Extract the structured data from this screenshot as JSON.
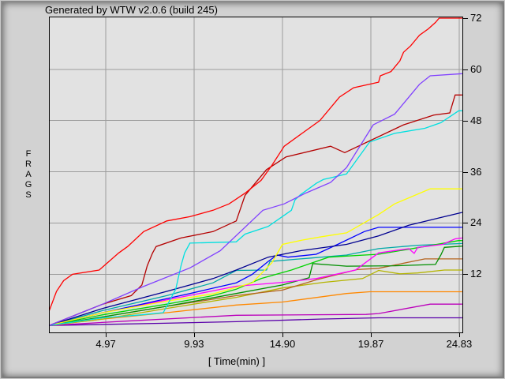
{
  "window": {
    "title": "Generated by WTW v2.0.6 (build 245)"
  },
  "chart_data": {
    "type": "line",
    "title": "",
    "xlabel": "[ Time(min) ]",
    "ylabel": "FRAGS",
    "y_axis_side": "right",
    "grid": true,
    "grid_color": "#9c9c9c",
    "plot_bg_color": "#e2e2e2",
    "x_range": [
      1.82,
      25.01
    ],
    "y_range": [
      -1.62,
      72.18
    ],
    "x_tick_values": [
      4.97,
      9.93,
      14.9,
      19.87,
      24.83
    ],
    "x_tick_labels": [
      "4.97",
      "9.93",
      "14.90",
      "19.87",
      "24.83"
    ],
    "y_tick_values": [
      72,
      60,
      48,
      36,
      24,
      12
    ],
    "y_tick_labels": [
      "72",
      "60",
      "48",
      "36",
      "24",
      "12"
    ],
    "legend": "none",
    "series": [
      {
        "name": "indigo",
        "color": "#5a00aa",
        "points": [
          [
            1.8,
            0
          ],
          [
            8.0,
            0.5
          ],
          [
            12.3,
            0.9
          ],
          [
            17.0,
            1.5
          ],
          [
            20.3,
            1.8
          ],
          [
            25.0,
            1.8
          ]
        ]
      },
      {
        "name": "dark-magenta",
        "color": "#bb00bb",
        "points": [
          [
            1.8,
            0
          ],
          [
            6.0,
            1
          ],
          [
            12.3,
            2.4
          ],
          [
            19.6,
            2.6
          ],
          [
            20.3,
            2.8
          ],
          [
            23.2,
            5
          ],
          [
            25.0,
            5
          ]
        ]
      },
      {
        "name": "orange",
        "color": "#ff8800",
        "points": [
          [
            1.8,
            0
          ],
          [
            4.8,
            1.5
          ],
          [
            8.4,
            3
          ],
          [
            12.3,
            4.8
          ],
          [
            14.9,
            5.5
          ],
          [
            18.5,
            7.5
          ],
          [
            19.8,
            7.9
          ],
          [
            25.0,
            7.9
          ]
        ]
      },
      {
        "name": "olive",
        "color": "#b4b400",
        "points": [
          [
            1.8,
            0
          ],
          [
            4.8,
            1.5
          ],
          [
            8.4,
            4
          ],
          [
            12.3,
            6.6
          ],
          [
            14.9,
            8.8
          ],
          [
            17.2,
            10.1
          ],
          [
            19.4,
            11
          ],
          [
            20.3,
            12.9
          ],
          [
            21.5,
            12.1
          ],
          [
            22.5,
            12.3
          ],
          [
            24.0,
            13
          ],
          [
            25.0,
            13
          ]
        ]
      },
      {
        "name": "brown",
        "color": "#b46420",
        "points": [
          [
            1.8,
            0
          ],
          [
            4.8,
            2
          ],
          [
            8.4,
            4.5
          ],
          [
            12.3,
            7
          ],
          [
            14.9,
            8.3
          ],
          [
            16.8,
            10.7
          ],
          [
            19.1,
            13.1
          ],
          [
            20.3,
            13.4
          ],
          [
            22.9,
            15.6
          ],
          [
            25.0,
            15.6
          ]
        ]
      },
      {
        "name": "dark-green",
        "color": "#008f00",
        "points": [
          [
            1.8,
            0
          ],
          [
            4.8,
            2
          ],
          [
            8.4,
            4.5
          ],
          [
            12.3,
            7.5
          ],
          [
            14.9,
            9.5
          ],
          [
            16.4,
            11.2
          ],
          [
            16.6,
            14.5
          ],
          [
            18.5,
            13.9
          ],
          [
            21.2,
            14
          ],
          [
            23.5,
            14.3
          ],
          [
            23.8,
            16.5
          ],
          [
            24.0,
            18.3
          ],
          [
            25.0,
            18.6
          ]
        ]
      },
      {
        "name": "teal",
        "color": "#00a8a8",
        "points": [
          [
            1.8,
            0
          ],
          [
            4.8,
            3.5
          ],
          [
            8.4,
            7
          ],
          [
            11.0,
            10
          ],
          [
            12.3,
            12.9
          ],
          [
            14.0,
            13
          ],
          [
            14.2,
            15
          ],
          [
            15.9,
            15.6
          ],
          [
            16.5,
            15.8
          ],
          [
            18.5,
            16.5
          ],
          [
            20.3,
            18
          ],
          [
            22.5,
            18.8
          ],
          [
            25.0,
            19.2
          ]
        ]
      },
      {
        "name": "green",
        "color": "#00d400",
        "points": [
          [
            1.8,
            0
          ],
          [
            4.8,
            2.5
          ],
          [
            8.4,
            5
          ],
          [
            11.0,
            7
          ],
          [
            12.3,
            8.5
          ],
          [
            13.7,
            11
          ],
          [
            15.4,
            13
          ],
          [
            17.5,
            16
          ],
          [
            18.2,
            16.2
          ],
          [
            20.3,
            16.7
          ],
          [
            22.9,
            18.5
          ],
          [
            24.8,
            19.9
          ],
          [
            25.0,
            19.9
          ]
        ]
      },
      {
        "name": "magenta",
        "color": "#ff00ff",
        "points": [
          [
            1.8,
            0
          ],
          [
            4.8,
            3
          ],
          [
            8.4,
            6
          ],
          [
            12.3,
            9.2
          ],
          [
            14.9,
            10.1
          ],
          [
            16.8,
            11
          ],
          [
            19.0,
            13
          ],
          [
            20.3,
            17
          ],
          [
            22.0,
            18
          ],
          [
            22.3,
            16.9
          ],
          [
            22.5,
            18.3
          ],
          [
            23.9,
            19
          ],
          [
            24.6,
            20.3
          ],
          [
            25.0,
            20.5
          ]
        ]
      },
      {
        "name": "blue",
        "color": "#0000ff",
        "points": [
          [
            1.8,
            0
          ],
          [
            4.8,
            3
          ],
          [
            7.0,
            5
          ],
          [
            9.7,
            7.5
          ],
          [
            12.3,
            10
          ],
          [
            13.2,
            12
          ],
          [
            14.1,
            15
          ],
          [
            14.6,
            16.5
          ],
          [
            15.2,
            16
          ],
          [
            16.8,
            16.7
          ],
          [
            18.0,
            19
          ],
          [
            19.5,
            22
          ],
          [
            20.3,
            23
          ],
          [
            25.0,
            23
          ]
        ]
      },
      {
        "name": "navy",
        "color": "#000090",
        "points": [
          [
            1.8,
            0
          ],
          [
            4.8,
            4
          ],
          [
            8.4,
            8
          ],
          [
            11.0,
            11
          ],
          [
            12.3,
            13
          ],
          [
            14.1,
            16
          ],
          [
            15.9,
            17.5
          ],
          [
            18.5,
            19
          ],
          [
            20.3,
            21
          ],
          [
            22.0,
            23.5
          ],
          [
            24.0,
            25.5
          ],
          [
            25.0,
            26.5
          ]
        ]
      },
      {
        "name": "yellow",
        "color": "#ffff00",
        "points": [
          [
            1.8,
            0
          ],
          [
            4.8,
            3
          ],
          [
            8.4,
            5.7
          ],
          [
            11.0,
            7.4
          ],
          [
            13.2,
            10
          ],
          [
            14.3,
            14.7
          ],
          [
            14.9,
            19
          ],
          [
            16.0,
            20
          ],
          [
            17.1,
            20.8
          ],
          [
            18.5,
            21.7
          ],
          [
            20.3,
            26
          ],
          [
            21.2,
            28.5
          ],
          [
            23.2,
            32
          ],
          [
            25.0,
            32
          ]
        ]
      },
      {
        "name": "cyan",
        "color": "#00e0e0",
        "points": [
          [
            1.8,
            0
          ],
          [
            4.8,
            1.8
          ],
          [
            7.0,
            2.5
          ],
          [
            8.2,
            3
          ],
          [
            8.9,
            8.5
          ],
          [
            9.2,
            14
          ],
          [
            9.4,
            17
          ],
          [
            9.7,
            19.3
          ],
          [
            12.3,
            19.6
          ],
          [
            12.8,
            21.4
          ],
          [
            14.1,
            23.2
          ],
          [
            15.4,
            27
          ],
          [
            15.6,
            29.4
          ],
          [
            15.9,
            30.6
          ],
          [
            16.3,
            31.8
          ],
          [
            16.8,
            33.3
          ],
          [
            17.2,
            34.2
          ],
          [
            17.6,
            34.6
          ],
          [
            18.5,
            35.5
          ],
          [
            19.8,
            43
          ],
          [
            21.2,
            45
          ],
          [
            22.9,
            46.2
          ],
          [
            23.8,
            47.5
          ],
          [
            24.8,
            50.3
          ],
          [
            25.0,
            50.3
          ]
        ]
      },
      {
        "name": "dark-red",
        "color": "#b40000",
        "points": [
          [
            1.8,
            0
          ],
          [
            4.8,
            5
          ],
          [
            6.4,
            7
          ],
          [
            7.0,
            9.5
          ],
          [
            7.3,
            14
          ],
          [
            7.6,
            17
          ],
          [
            7.8,
            18.5
          ],
          [
            9.2,
            20.5
          ],
          [
            11.0,
            22
          ],
          [
            12.3,
            24.5
          ],
          [
            12.8,
            30.5
          ],
          [
            14.0,
            36.5
          ],
          [
            15.1,
            39.5
          ],
          [
            17.6,
            42
          ],
          [
            18.4,
            40.5
          ],
          [
            21.7,
            47
          ],
          [
            23.4,
            49.3
          ],
          [
            24.3,
            49.8
          ],
          [
            24.6,
            54
          ],
          [
            25.0,
            54
          ]
        ]
      },
      {
        "name": "violet",
        "color": "#8040ff",
        "points": [
          [
            1.8,
            0
          ],
          [
            4.8,
            5
          ],
          [
            7.0,
            9
          ],
          [
            9.7,
            13.5
          ],
          [
            11.4,
            17.5
          ],
          [
            13.8,
            27
          ],
          [
            15.0,
            28.5
          ],
          [
            16.2,
            31
          ],
          [
            17.6,
            33.5
          ],
          [
            18.5,
            37
          ],
          [
            20.0,
            47
          ],
          [
            21.2,
            49.5
          ],
          [
            21.9,
            53
          ],
          [
            22.6,
            56.5
          ],
          [
            23.2,
            58.5
          ],
          [
            25.0,
            59
          ]
        ]
      },
      {
        "name": "red",
        "color": "#ff0000",
        "points": [
          [
            1.8,
            3.5
          ],
          [
            2.2,
            8
          ],
          [
            2.6,
            10.5
          ],
          [
            3.1,
            12
          ],
          [
            4.6,
            13
          ],
          [
            5.7,
            17
          ],
          [
            6.2,
            18.5
          ],
          [
            7.1,
            22
          ],
          [
            8.4,
            24.5
          ],
          [
            9.7,
            25.5
          ],
          [
            11.0,
            27
          ],
          [
            11.9,
            28.5
          ],
          [
            12.8,
            31
          ],
          [
            13.7,
            34
          ],
          [
            14.3,
            37.5
          ],
          [
            15.0,
            42
          ],
          [
            16.0,
            45
          ],
          [
            17.0,
            48
          ],
          [
            18.1,
            53.5
          ],
          [
            18.9,
            55.7
          ],
          [
            20.3,
            57
          ],
          [
            20.4,
            58.5
          ],
          [
            21.0,
            59.5
          ],
          [
            21.5,
            62
          ],
          [
            21.7,
            64
          ],
          [
            22.1,
            65.5
          ],
          [
            22.4,
            67
          ],
          [
            22.6,
            68
          ],
          [
            23.1,
            69.5
          ],
          [
            23.5,
            71
          ],
          [
            23.7,
            72
          ],
          [
            25.0,
            72
          ]
        ]
      }
    ]
  }
}
